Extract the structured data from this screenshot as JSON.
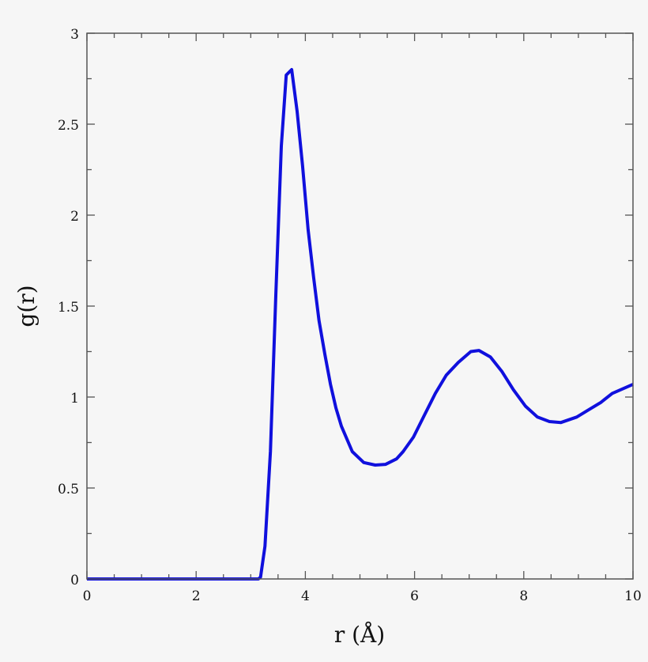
{
  "chart_data": {
    "type": "line",
    "title": "",
    "xlabel": "r (Å)",
    "ylabel": "g(r)",
    "xlim": [
      0,
      10
    ],
    "ylim": [
      0,
      3
    ],
    "x_ticks": [
      "0",
      "2",
      "4",
      "6",
      "8",
      "10"
    ],
    "y_ticks": [
      "0",
      "0.5",
      "1",
      "1.5",
      "2",
      "2.5",
      "3"
    ],
    "x_tick_values": [
      0,
      2,
      4,
      6,
      8,
      10
    ],
    "y_tick_values": [
      0,
      0.5,
      1,
      1.5,
      2,
      2.5,
      3
    ],
    "x_minor_step": 0.5,
    "y_minor_step": 0.25,
    "grid": false,
    "line_color": "#1010dd",
    "series": [
      {
        "x": [
          0,
          1,
          2,
          3.0,
          3.14,
          3.18,
          3.26,
          3.36,
          3.46,
          3.56,
          3.65,
          3.75,
          3.85,
          3.95,
          4.05,
          4.15,
          4.25,
          4.36,
          4.46,
          4.56,
          4.66,
          4.86,
          5.07,
          5.28,
          5.47,
          5.67,
          5.79,
          5.98,
          6.18,
          6.38,
          6.58,
          6.8,
          7.03,
          7.18,
          7.39,
          7.6,
          7.81,
          8.03,
          8.25,
          8.47,
          8.68,
          8.97,
          9.19,
          9.41,
          9.62,
          10
        ],
        "y": [
          0,
          0,
          0,
          0,
          0,
          0.01,
          0.18,
          0.7,
          1.57,
          2.38,
          2.77,
          2.8,
          2.57,
          2.27,
          1.92,
          1.66,
          1.42,
          1.23,
          1.07,
          0.94,
          0.84,
          0.7,
          0.64,
          0.626,
          0.63,
          0.66,
          0.7,
          0.78,
          0.9,
          1.02,
          1.12,
          1.19,
          1.25,
          1.256,
          1.22,
          1.14,
          1.04,
          0.95,
          0.89,
          0.865,
          0.86,
          0.89,
          0.93,
          0.97,
          1.02,
          1.07
        ]
      }
    ]
  }
}
